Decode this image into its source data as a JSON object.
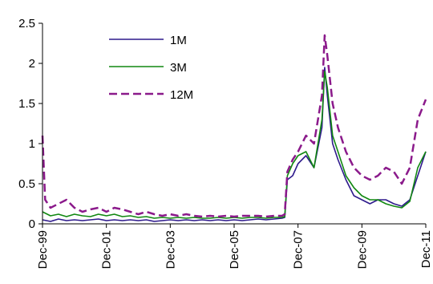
{
  "chart_data": {
    "type": "line",
    "title": "",
    "xlabel": "",
    "ylabel": "",
    "ylim": [
      0,
      2.5
    ],
    "y_ticks": [
      "0",
      "0.5",
      "1",
      "1.5",
      "2",
      "2.5"
    ],
    "y_tick_values": [
      0,
      0.5,
      1,
      1.5,
      2,
      2.5
    ],
    "x_ticks": [
      "Dec-99",
      "Dec-01",
      "Dec-03",
      "Dec-05",
      "Dec-07",
      "Dec-09",
      "Dec-11"
    ],
    "x_tick_values": [
      "1999-12",
      "2001-12",
      "2003-12",
      "2005-12",
      "2007-12",
      "2009-12",
      "2011-12"
    ],
    "grid": false,
    "legend_position": "top-left",
    "series": [
      {
        "name": "1M",
        "color": "#2e1a8c",
        "style": "solid",
        "points": [
          [
            "1999-12",
            0.05
          ],
          [
            "2000-03",
            0.03
          ],
          [
            "2000-06",
            0.06
          ],
          [
            "2000-09",
            0.04
          ],
          [
            "2000-12",
            0.05
          ],
          [
            "2001-03",
            0.04
          ],
          [
            "2001-06",
            0.05
          ],
          [
            "2001-09",
            0.06
          ],
          [
            "2001-12",
            0.04
          ],
          [
            "2002-03",
            0.05
          ],
          [
            "2002-06",
            0.04
          ],
          [
            "2002-09",
            0.05
          ],
          [
            "2002-12",
            0.04
          ],
          [
            "2003-03",
            0.05
          ],
          [
            "2003-06",
            0.03
          ],
          [
            "2003-09",
            0.04
          ],
          [
            "2003-12",
            0.05
          ],
          [
            "2004-03",
            0.04
          ],
          [
            "2004-06",
            0.05
          ],
          [
            "2004-09",
            0.04
          ],
          [
            "2004-12",
            0.05
          ],
          [
            "2005-03",
            0.04
          ],
          [
            "2005-06",
            0.05
          ],
          [
            "2005-09",
            0.04
          ],
          [
            "2005-12",
            0.05
          ],
          [
            "2006-03",
            0.04
          ],
          [
            "2006-06",
            0.05
          ],
          [
            "2006-09",
            0.06
          ],
          [
            "2006-12",
            0.05
          ],
          [
            "2007-03",
            0.06
          ],
          [
            "2007-06",
            0.07
          ],
          [
            "2007-07",
            0.08
          ],
          [
            "2007-08",
            0.55
          ],
          [
            "2007-10",
            0.6
          ],
          [
            "2007-12",
            0.75
          ],
          [
            "2008-03",
            0.85
          ],
          [
            "2008-06",
            0.7
          ],
          [
            "2008-09",
            1.2
          ],
          [
            "2008-10",
            1.95
          ],
          [
            "2008-11",
            1.6
          ],
          [
            "2009-01",
            1.0
          ],
          [
            "2009-03",
            0.8
          ],
          [
            "2009-06",
            0.55
          ],
          [
            "2009-09",
            0.35
          ],
          [
            "2009-12",
            0.3
          ],
          [
            "2010-03",
            0.25
          ],
          [
            "2010-06",
            0.3
          ],
          [
            "2010-09",
            0.3
          ],
          [
            "2010-12",
            0.25
          ],
          [
            "2011-03",
            0.22
          ],
          [
            "2011-06",
            0.3
          ],
          [
            "2011-09",
            0.6
          ],
          [
            "2011-12",
            0.9
          ]
        ]
      },
      {
        "name": "3M",
        "color": "#118811",
        "style": "solid",
        "points": [
          [
            "1999-12",
            0.15
          ],
          [
            "2000-03",
            0.1
          ],
          [
            "2000-06",
            0.12
          ],
          [
            "2000-09",
            0.09
          ],
          [
            "2000-12",
            0.12
          ],
          [
            "2001-03",
            0.1
          ],
          [
            "2001-06",
            0.09
          ],
          [
            "2001-09",
            0.12
          ],
          [
            "2001-12",
            0.1
          ],
          [
            "2002-03",
            0.12
          ],
          [
            "2002-06",
            0.09
          ],
          [
            "2002-09",
            0.1
          ],
          [
            "2002-12",
            0.08
          ],
          [
            "2003-03",
            0.09
          ],
          [
            "2003-06",
            0.07
          ],
          [
            "2003-09",
            0.08
          ],
          [
            "2003-12",
            0.07
          ],
          [
            "2004-03",
            0.08
          ],
          [
            "2004-06",
            0.07
          ],
          [
            "2004-09",
            0.08
          ],
          [
            "2004-12",
            0.07
          ],
          [
            "2005-03",
            0.07
          ],
          [
            "2005-06",
            0.08
          ],
          [
            "2005-09",
            0.07
          ],
          [
            "2005-12",
            0.08
          ],
          [
            "2006-03",
            0.07
          ],
          [
            "2006-06",
            0.08
          ],
          [
            "2006-09",
            0.08
          ],
          [
            "2006-12",
            0.07
          ],
          [
            "2007-03",
            0.08
          ],
          [
            "2007-06",
            0.08
          ],
          [
            "2007-07",
            0.09
          ],
          [
            "2007-08",
            0.6
          ],
          [
            "2007-10",
            0.75
          ],
          [
            "2007-12",
            0.85
          ],
          [
            "2008-03",
            0.9
          ],
          [
            "2008-06",
            0.7
          ],
          [
            "2008-09",
            1.3
          ],
          [
            "2008-10",
            1.9
          ],
          [
            "2008-11",
            1.7
          ],
          [
            "2009-01",
            1.1
          ],
          [
            "2009-03",
            0.9
          ],
          [
            "2009-06",
            0.6
          ],
          [
            "2009-09",
            0.45
          ],
          [
            "2009-12",
            0.35
          ],
          [
            "2010-03",
            0.3
          ],
          [
            "2010-06",
            0.3
          ],
          [
            "2010-09",
            0.25
          ],
          [
            "2010-12",
            0.22
          ],
          [
            "2011-03",
            0.2
          ],
          [
            "2011-06",
            0.28
          ],
          [
            "2011-09",
            0.7
          ],
          [
            "2011-12",
            0.9
          ]
        ]
      },
      {
        "name": "12M",
        "color": "#8b1a8b",
        "style": "dashed",
        "points": [
          [
            "1999-12",
            1.1
          ],
          [
            "2000-01",
            0.3
          ],
          [
            "2000-03",
            0.2
          ],
          [
            "2000-06",
            0.25
          ],
          [
            "2000-09",
            0.3
          ],
          [
            "2000-12",
            0.2
          ],
          [
            "2001-03",
            0.15
          ],
          [
            "2001-06",
            0.18
          ],
          [
            "2001-09",
            0.2
          ],
          [
            "2001-12",
            0.15
          ],
          [
            "2002-03",
            0.2
          ],
          [
            "2002-06",
            0.18
          ],
          [
            "2002-09",
            0.15
          ],
          [
            "2002-12",
            0.12
          ],
          [
            "2003-03",
            0.15
          ],
          [
            "2003-06",
            0.12
          ],
          [
            "2003-09",
            0.1
          ],
          [
            "2003-12",
            0.12
          ],
          [
            "2004-03",
            0.1
          ],
          [
            "2004-06",
            0.12
          ],
          [
            "2004-09",
            0.1
          ],
          [
            "2004-12",
            0.09
          ],
          [
            "2005-03",
            0.1
          ],
          [
            "2005-06",
            0.09
          ],
          [
            "2005-09",
            0.1
          ],
          [
            "2005-12",
            0.09
          ],
          [
            "2006-03",
            0.1
          ],
          [
            "2006-06",
            0.1
          ],
          [
            "2006-09",
            0.1
          ],
          [
            "2006-12",
            0.09
          ],
          [
            "2007-03",
            0.1
          ],
          [
            "2007-06",
            0.1
          ],
          [
            "2007-07",
            0.12
          ],
          [
            "2007-08",
            0.65
          ],
          [
            "2007-10",
            0.8
          ],
          [
            "2007-12",
            0.9
          ],
          [
            "2008-03",
            1.1
          ],
          [
            "2008-06",
            1.0
          ],
          [
            "2008-09",
            1.6
          ],
          [
            "2008-10",
            2.35
          ],
          [
            "2008-11",
            2.1
          ],
          [
            "2009-01",
            1.5
          ],
          [
            "2009-03",
            1.2
          ],
          [
            "2009-06",
            0.9
          ],
          [
            "2009-09",
            0.7
          ],
          [
            "2009-12",
            0.6
          ],
          [
            "2010-03",
            0.55
          ],
          [
            "2010-06",
            0.6
          ],
          [
            "2010-09",
            0.7
          ],
          [
            "2010-12",
            0.65
          ],
          [
            "2011-03",
            0.5
          ],
          [
            "2011-06",
            0.7
          ],
          [
            "2011-09",
            1.3
          ],
          [
            "2011-12",
            1.55
          ]
        ]
      }
    ]
  }
}
